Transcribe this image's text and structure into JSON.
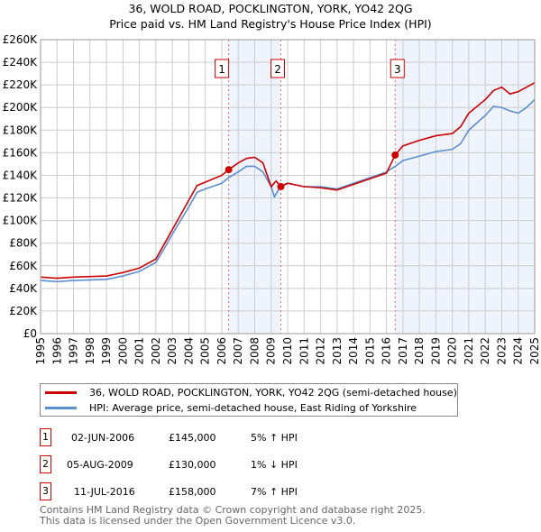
{
  "chart_data": {
    "type": "line",
    "title": "36, WOLD ROAD, POCKLINGTON, YORK, YO42 2QG",
    "subtitle": "Price paid vs. HM Land Registry's House Price Index (HPI)",
    "xlim": [
      1995,
      2025
    ],
    "ylim": [
      0,
      260000
    ],
    "x_ticks": [
      "1995",
      "1996",
      "1997",
      "1998",
      "1999",
      "2000",
      "2001",
      "2002",
      "2003",
      "2004",
      "2005",
      "2006",
      "2007",
      "2008",
      "2009",
      "2010",
      "2011",
      "2012",
      "2013",
      "2014",
      "2015",
      "2016",
      "2017",
      "2018",
      "2019",
      "2020",
      "2021",
      "2022",
      "2023",
      "2024",
      "2025"
    ],
    "y_ticks": [
      {
        "v": 0,
        "l": "£0"
      },
      {
        "v": 20000,
        "l": "£20K"
      },
      {
        "v": 40000,
        "l": "£40K"
      },
      {
        "v": 60000,
        "l": "£60K"
      },
      {
        "v": 80000,
        "l": "£80K"
      },
      {
        "v": 100000,
        "l": "£100K"
      },
      {
        "v": 120000,
        "l": "£120K"
      },
      {
        "v": 140000,
        "l": "£140K"
      },
      {
        "v": 160000,
        "l": "£160K"
      },
      {
        "v": 180000,
        "l": "£180K"
      },
      {
        "v": 200000,
        "l": "£200K"
      },
      {
        "v": 220000,
        "l": "£220K"
      },
      {
        "v": 240000,
        "l": "£240K"
      },
      {
        "v": 260000,
        "l": "£260K"
      }
    ],
    "grid": true,
    "series": [
      {
        "name": "36, WOLD ROAD, POCKLINGTON, YORK, YO42 2QG (semi-detached house)",
        "color": "#cc0000",
        "x": [
          1995,
          1996,
          1997,
          1998,
          1999,
          2000,
          2001,
          2002,
          2002.5,
          2003,
          2003.5,
          2004,
          2004.5,
          2005,
          2006,
          2006.42,
          2007,
          2007.5,
          2008,
          2008.5,
          2009,
          2009.3,
          2009.59,
          2010,
          2011,
          2012,
          2013,
          2014,
          2015,
          2016,
          2016.53,
          2017,
          2018,
          2019,
          2020,
          2020.5,
          2021,
          2022,
          2022.5,
          2023,
          2023.5,
          2024,
          2024.5,
          2025
        ],
        "y": [
          50000,
          49000,
          50000,
          50500,
          51000,
          54000,
          58000,
          66000,
          79000,
          92000,
          105000,
          118000,
          131000,
          134000,
          140000,
          145000,
          151000,
          155000,
          156000,
          151000,
          130000,
          135000,
          130000,
          133000,
          130000,
          129000,
          127000,
          132000,
          137000,
          142000,
          158000,
          166000,
          171000,
          175000,
          177000,
          183000,
          195000,
          207000,
          215000,
          218000,
          212000,
          214000,
          218000,
          222000
        ]
      },
      {
        "name": "HPI: Average price, semi-detached house, East Riding of Yorkshire",
        "color": "#5b8fd0",
        "x": [
          1995,
          1996,
          1997,
          1998,
          1999,
          2000,
          2001,
          2002,
          2002.5,
          2003,
          2003.5,
          2004,
          2004.5,
          2005,
          2006,
          2006.42,
          2007,
          2007.5,
          2008,
          2008.5,
          2009,
          2009.2,
          2009.59,
          2010,
          2011,
          2012,
          2013,
          2014,
          2015,
          2016,
          2016.53,
          2017,
          2018,
          2019,
          2020,
          2020.5,
          2021,
          2022,
          2022.5,
          2023,
          2023.5,
          2024,
          2024.5,
          2025
        ],
        "y": [
          47000,
          46000,
          47000,
          47500,
          48000,
          51000,
          55000,
          63000,
          75000,
          88000,
          100000,
          112000,
          125000,
          128000,
          133000,
          138000,
          143000,
          148000,
          148000,
          143000,
          130000,
          121000,
          131000,
          133000,
          130000,
          130000,
          128000,
          133000,
          138000,
          143000,
          148000,
          153000,
          157000,
          161000,
          163000,
          168000,
          180000,
          193000,
          201000,
          200000,
          197000,
          195000,
          200000,
          207000
        ]
      }
    ],
    "sales": [
      {
        "label": "1",
        "x": 2006.42,
        "price": 145000,
        "date": "02-JUN-2006",
        "price_text": "£145,000",
        "hpi": "5% ↑ HPI"
      },
      {
        "label": "2",
        "x": 2009.59,
        "price": 130000,
        "date": "05-AUG-2009",
        "price_text": "£130,000",
        "hpi": "1% ↓ HPI"
      },
      {
        "label": "3",
        "x": 2016.53,
        "price": 158000,
        "date": "11-JUL-2016",
        "price_text": "£158,000",
        "hpi": "7% ↑ HPI"
      }
    ],
    "legend_placement": "below"
  },
  "footer": [
    "Contains HM Land Registry data © Crown copyright and database right 2025.",
    "This data is licensed under the Open Government Licence v3.0."
  ]
}
